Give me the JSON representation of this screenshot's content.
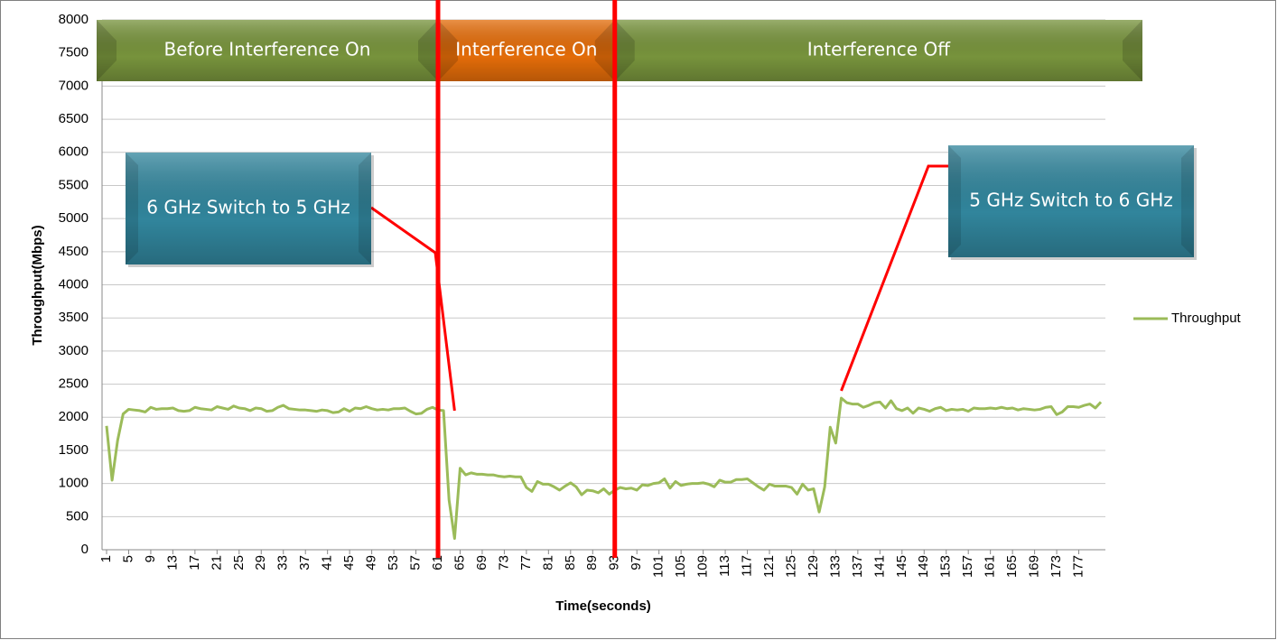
{
  "chart_data": {
    "type": "line",
    "x_label": "Time(seconds)",
    "y_label": "Throughput(Mbps)",
    "categories": [
      "1",
      null,
      null,
      null,
      "5",
      null,
      null,
      null,
      "9",
      null,
      null,
      null,
      "13",
      null,
      null,
      null,
      "17",
      null,
      null,
      null,
      "21",
      null,
      null,
      null,
      "25",
      null,
      null,
      null,
      "29",
      null,
      null,
      null,
      "33",
      null,
      null,
      null,
      "37",
      null,
      null,
      null,
      "41",
      null,
      null,
      null,
      "45",
      null,
      null,
      null,
      "49",
      null,
      null,
      null,
      "53",
      null,
      null,
      null,
      "57",
      null,
      null,
      null,
      "61",
      null,
      null,
      null,
      "65",
      null,
      null,
      null,
      "69",
      null,
      null,
      null,
      "73",
      null,
      null,
      null,
      "77",
      null,
      null,
      null,
      "81",
      null,
      null,
      null,
      "85",
      null,
      null,
      null,
      "89",
      null,
      null,
      null,
      "93",
      null,
      null,
      null,
      "97",
      null,
      null,
      null,
      "101",
      null,
      null,
      null,
      "105",
      null,
      null,
      null,
      "109",
      null,
      null,
      null,
      "113",
      null,
      null,
      null,
      "117",
      null,
      null,
      null,
      "121",
      null,
      null,
      null,
      "125",
      null,
      null,
      null,
      "129",
      null,
      null,
      null,
      "133",
      null,
      null,
      null,
      "137",
      null,
      null,
      null,
      "141",
      null,
      null,
      null,
      "145",
      null,
      null,
      null,
      "149",
      null,
      null,
      null,
      "153",
      null,
      null,
      null,
      "157",
      null,
      null,
      null,
      "161",
      null,
      null,
      null,
      "165",
      null,
      null,
      null,
      "169",
      null,
      null,
      null,
      "173",
      null,
      null,
      null,
      "177",
      null,
      null,
      null,
      null
    ],
    "series": [
      {
        "name": "Throughput",
        "color": "#9bbb59",
        "values": [
          1870,
          1050,
          1650,
          2050,
          2120,
          2110,
          2100,
          2080,
          2150,
          2120,
          2130,
          2130,
          2140,
          2100,
          2090,
          2100,
          2150,
          2130,
          2120,
          2110,
          2160,
          2140,
          2120,
          2170,
          2140,
          2130,
          2100,
          2140,
          2130,
          2090,
          2100,
          2150,
          2180,
          2130,
          2120,
          2110,
          2110,
          2100,
          2090,
          2110,
          2100,
          2070,
          2080,
          2130,
          2090,
          2140,
          2130,
          2160,
          2130,
          2110,
          2120,
          2110,
          2130,
          2130,
          2140,
          2090,
          2050,
          2060,
          2120,
          2150,
          2110,
          2100,
          750,
          170,
          1230,
          1130,
          1160,
          1140,
          1140,
          1130,
          1130,
          1110,
          1100,
          1110,
          1100,
          1100,
          940,
          880,
          1030,
          990,
          990,
          950,
          900,
          960,
          1010,
          950,
          830,
          900,
          890,
          860,
          920,
          840,
          900,
          940,
          920,
          930,
          900,
          980,
          970,
          1000,
          1010,
          1070,
          930,
          1030,
          970,
          990,
          1000,
          1000,
          1010,
          990,
          950,
          1050,
          1020,
          1020,
          1060,
          1060,
          1070,
          1010,
          950,
          900,
          990,
          960,
          960,
          960,
          940,
          840,
          990,
          900,
          920,
          570,
          950,
          1850,
          1610,
          2290,
          2220,
          2200,
          2200,
          2150,
          2180,
          2220,
          2230,
          2140,
          2250,
          2130,
          2100,
          2140,
          2060,
          2140,
          2120,
          2090,
          2130,
          2150,
          2100,
          2120,
          2110,
          2120,
          2090,
          2140,
          2130,
          2130,
          2140,
          2130,
          2150,
          2130,
          2140,
          2110,
          2130,
          2120,
          2110,
          2120,
          2150,
          2160,
          2040,
          2080,
          2160,
          2160,
          2150,
          2180,
          2200,
          2140,
          2230
        ]
      }
    ],
    "ylim": [
      0,
      8000
    ],
    "yticks": [
      0,
      500,
      1000,
      1500,
      2000,
      2500,
      3000,
      3500,
      4000,
      4500,
      5000,
      5500,
      6000,
      6500,
      7000,
      7500,
      8000
    ],
    "grid": true,
    "legend": "right",
    "phase_boundaries": [
      61,
      93
    ],
    "phase_line_color": "#ff0000",
    "phases": [
      {
        "label": "Before Interference On",
        "color": "#77933c"
      },
      {
        "label": "Interference On",
        "color": "#e36c09"
      },
      {
        "label": "Interference Off",
        "color": "#77933c"
      }
    ],
    "callouts": [
      {
        "label": "6 GHz Switch to 5 GHz",
        "x": 64,
        "y": 2100
      },
      {
        "label": "5 GHz Switch to 6 GHz",
        "x": 134,
        "y": 2400
      }
    ],
    "callout_color": "#31859c"
  }
}
